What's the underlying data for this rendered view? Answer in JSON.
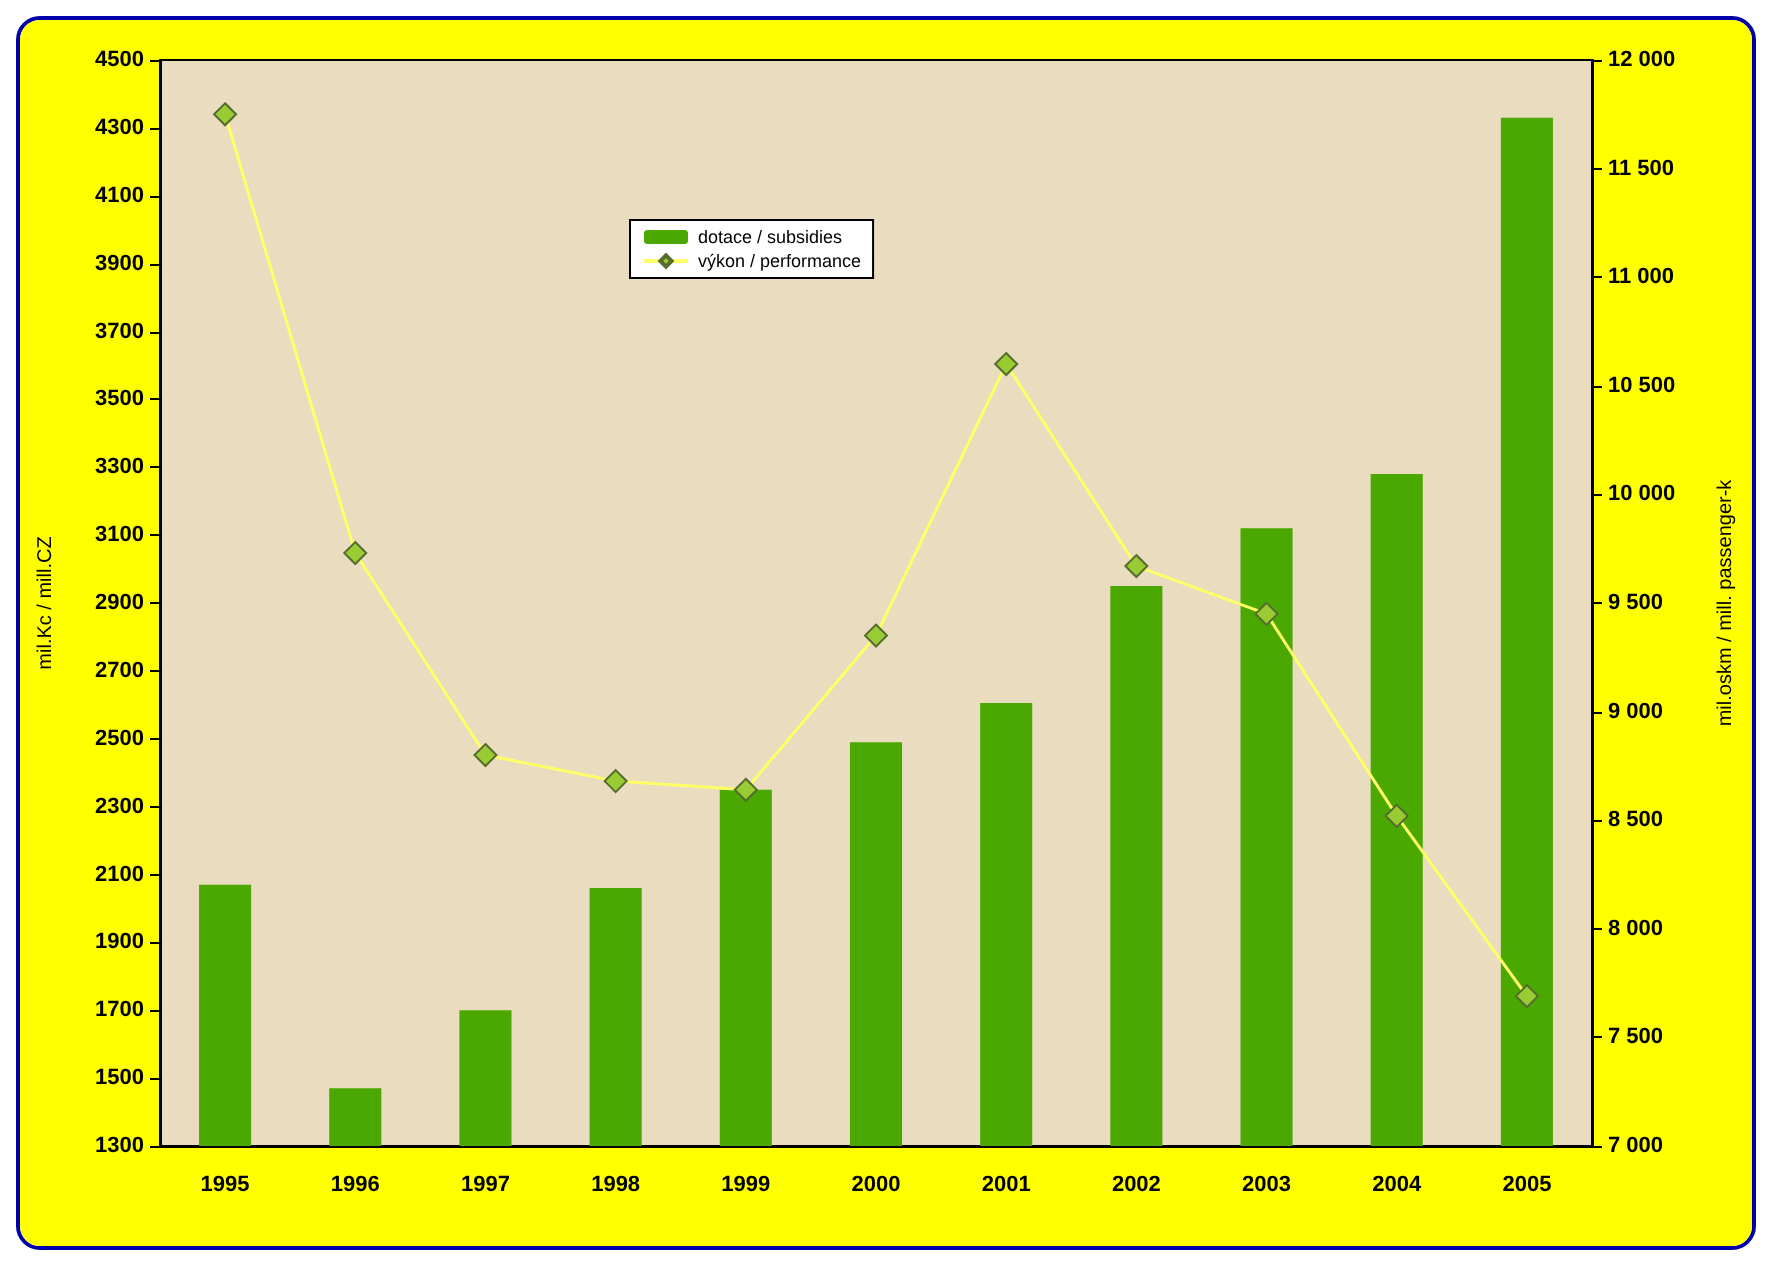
{
  "chart_data": {
    "type": "bar",
    "ylabel": "mil.Kc / mill.CZ",
    "y2label": "mil.oskm / mill. passenger-k",
    "categories": [
      "1995",
      "1996",
      "1997",
      "1998",
      "1999",
      "2000",
      "2001",
      "2002",
      "2003",
      "2004",
      "2005"
    ],
    "series": [
      {
        "name": "dotace / subsidies",
        "color": "#4aa800",
        "values": [
          2070,
          1470,
          1700,
          2060,
          2350,
          2490,
          2605,
          2950,
          3120,
          3280,
          4330
        ]
      },
      {
        "name": "výkon / performance",
        "type": "line",
        "axis": "y2",
        "color": "#ffff66",
        "marker": "diamond",
        "values": [
          11750,
          9730,
          8800,
          8680,
          8640,
          9350,
          10600,
          9670,
          9450,
          8520,
          7690
        ]
      }
    ],
    "ylim": [
      1300,
      4500
    ],
    "yticks": [
      1300,
      1500,
      1700,
      1900,
      2100,
      2300,
      2500,
      2700,
      2900,
      3100,
      3300,
      3500,
      3700,
      3900,
      4100,
      4300,
      4500
    ],
    "y2lim": [
      7000,
      12000
    ],
    "y2ticks": [
      {
        "value": 7000,
        "label": "7 000"
      },
      {
        "value": 7500,
        "label": "7 500"
      },
      {
        "value": 8000,
        "label": "8 000"
      },
      {
        "value": 8500,
        "label": "8 500"
      },
      {
        "value": 9000,
        "label": "9 000"
      },
      {
        "value": 9500,
        "label": "9 500"
      },
      {
        "value": 10000,
        "label": "10 000"
      },
      {
        "value": 10500,
        "label": "10 500"
      },
      {
        "value": 11000,
        "label": "11 000"
      },
      {
        "value": 11500,
        "label": "11 500"
      },
      {
        "value": 12000,
        "label": "12 000"
      }
    ],
    "legend": "top",
    "grid": false
  }
}
